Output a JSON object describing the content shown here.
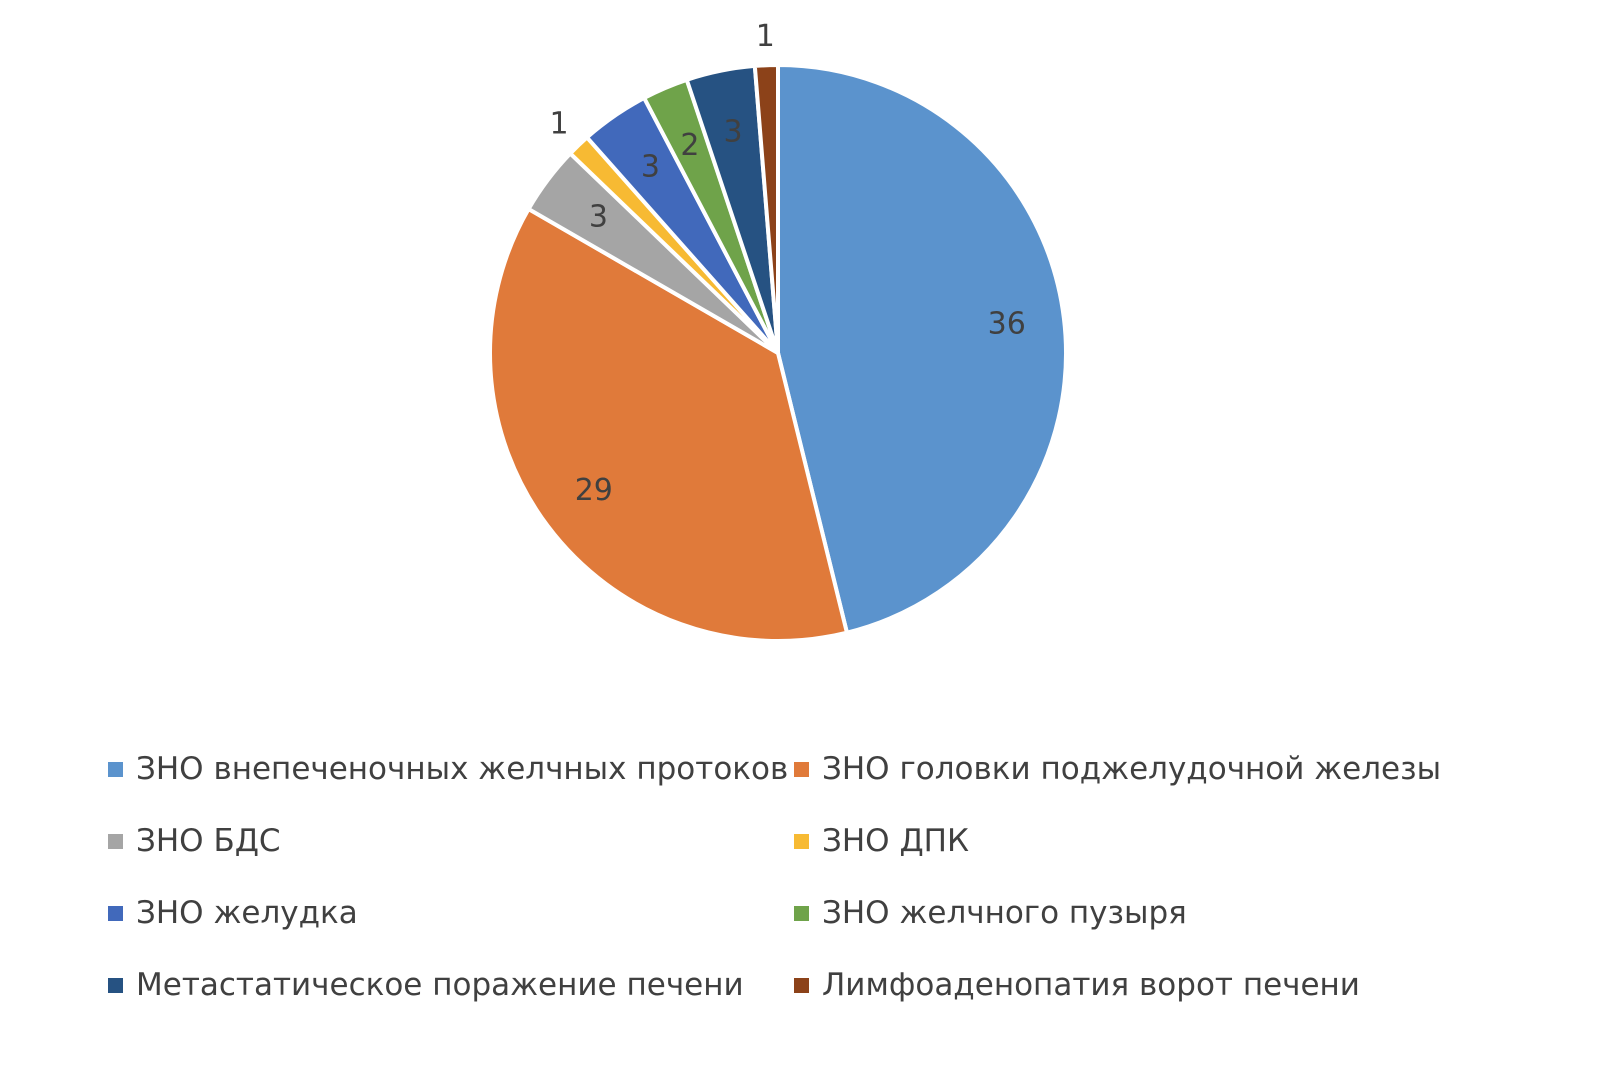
{
  "chart_data": {
    "type": "pie",
    "title": "",
    "start_angle_deg": 0,
    "direction": "clockwise",
    "categories": [
      "ЗНО внепеченочных желчных протоков",
      "ЗНО головки поджелудочной железы",
      "ЗНО БДС",
      "ЗНО ДПК",
      "ЗНО желудка",
      "ЗНО желчного пузыря",
      "Метастатическое поражение печени",
      "Лимфоаденопатия ворот печени"
    ],
    "values": [
      36,
      29,
      3,
      1,
      3,
      2,
      3,
      1
    ],
    "colors": [
      "#5B93CD",
      "#E07A3A",
      "#A5A5A5",
      "#F7BA33",
      "#4169BB",
      "#6FA34A",
      "#265282",
      "#8C4219"
    ],
    "data_labels": [
      "36",
      "29",
      "3",
      "1",
      "3",
      "2",
      "3",
      "1"
    ],
    "legend_position": "bottom"
  },
  "legend": {
    "items": [
      {
        "label": "ЗНО внепеченочных желчных протоков",
        "color": "#5B93CD"
      },
      {
        "label": "ЗНО головки поджелудочной железы",
        "color": "#E07A3A"
      },
      {
        "label": "ЗНО БДС",
        "color": "#A5A5A5"
      },
      {
        "label": "ЗНО ДПК",
        "color": "#F7BA33"
      },
      {
        "label": "ЗНО желудка",
        "color": "#4169BB"
      },
      {
        "label": "ЗНО желчного пузыря",
        "color": "#6FA34A"
      },
      {
        "label": "Метастатическое поражение печени",
        "color": "#265282"
      },
      {
        "label": "Лимфоаденопатия ворот печени",
        "color": "#8C4219"
      }
    ]
  }
}
